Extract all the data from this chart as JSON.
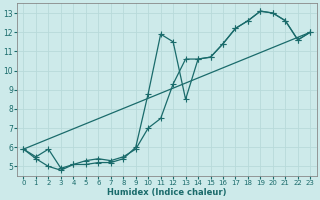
{
  "xlabel": "Humidex (Indice chaleur)",
  "bg_color": "#cdeaea",
  "line_color": "#1a6b6b",
  "xlim": [
    -0.5,
    23.5
  ],
  "ylim": [
    4.5,
    13.5
  ],
  "xticks": [
    0,
    1,
    2,
    3,
    4,
    5,
    6,
    7,
    8,
    9,
    10,
    11,
    12,
    13,
    14,
    15,
    16,
    17,
    18,
    19,
    20,
    21,
    22,
    23
  ],
  "yticks": [
    5,
    6,
    7,
    8,
    9,
    10,
    11,
    12,
    13
  ],
  "grid_color": "#b8dada",
  "line1_x": [
    0,
    1,
    2,
    3,
    4,
    5,
    6,
    7,
    8,
    9,
    10,
    11,
    12,
    13,
    14,
    15,
    16,
    17,
    18,
    19,
    20,
    21,
    22,
    23
  ],
  "line1_y": [
    5.9,
    5.5,
    5.9,
    4.9,
    5.1,
    5.3,
    5.4,
    5.3,
    5.5,
    5.9,
    7.0,
    7.5,
    9.3,
    10.6,
    10.6,
    10.7,
    11.4,
    12.2,
    12.6,
    13.1,
    13.0,
    12.6,
    11.6,
    12.0
  ],
  "line2_x": [
    0,
    1,
    2,
    3,
    4,
    5,
    6,
    7,
    8,
    9,
    10,
    11,
    12,
    13,
    14,
    15,
    16,
    17,
    18,
    19,
    20,
    21,
    22,
    23
  ],
  "line2_y": [
    5.9,
    5.4,
    5.0,
    4.8,
    5.1,
    5.1,
    5.2,
    5.2,
    5.4,
    6.0,
    8.8,
    11.9,
    11.5,
    8.5,
    10.6,
    10.7,
    11.4,
    12.2,
    12.6,
    13.1,
    13.0,
    12.6,
    11.6,
    12.0
  ],
  "line3_x": [
    0,
    23
  ],
  "line3_y": [
    5.9,
    12.0
  ]
}
